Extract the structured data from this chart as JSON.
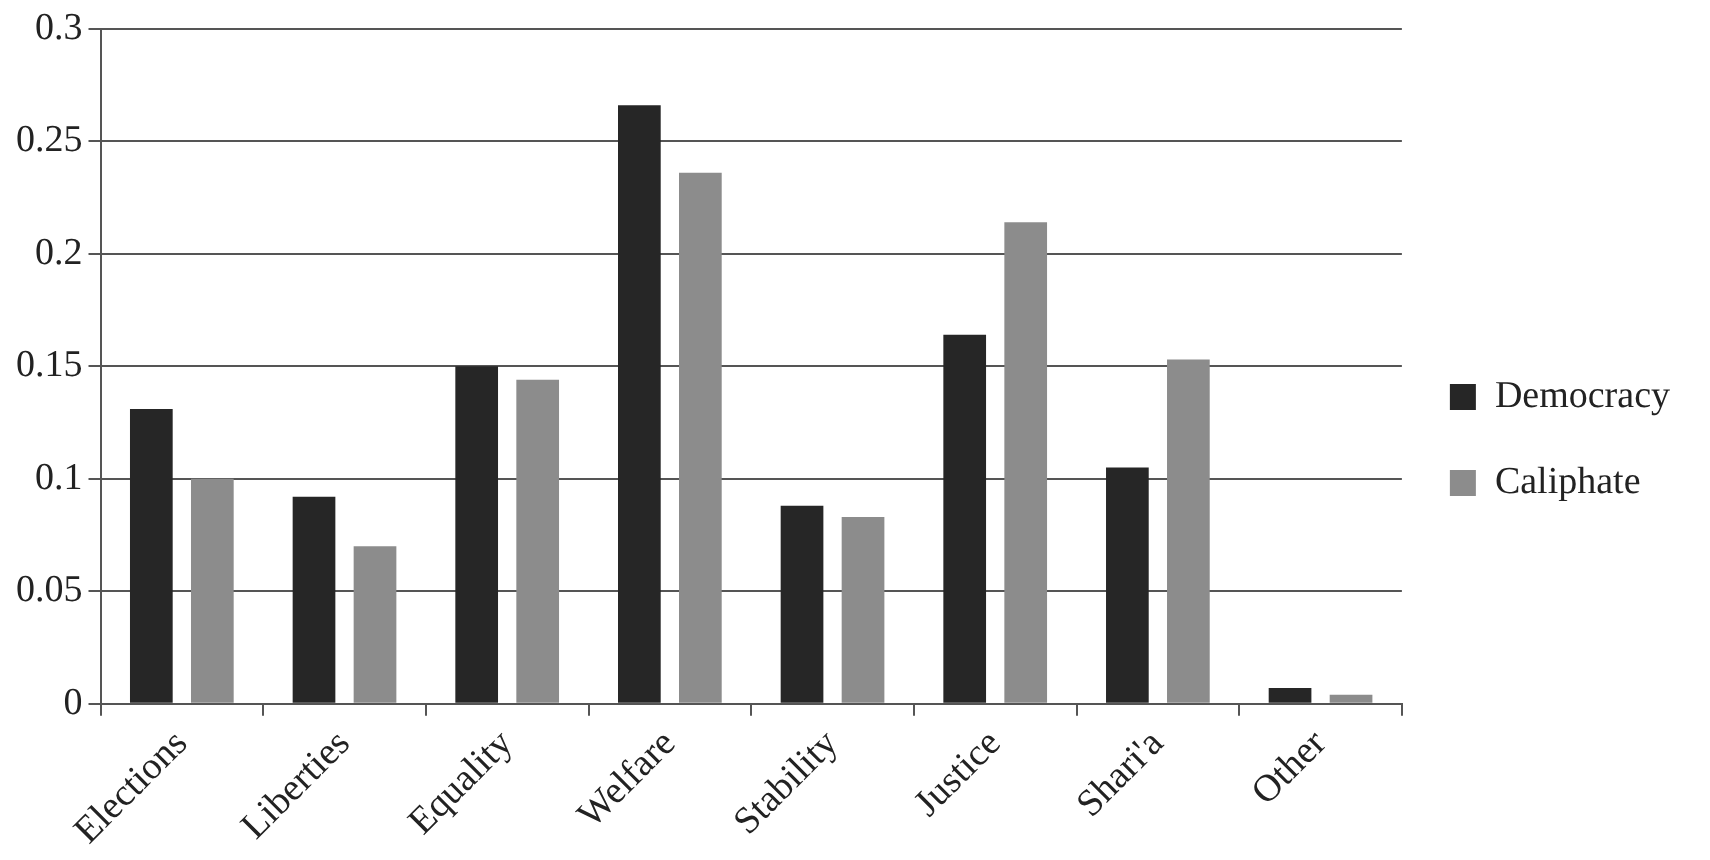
{
  "chart_data": {
    "type": "bar",
    "categories": [
      "Elections",
      "Liberties",
      "Equality",
      "Welfare",
      "Stability",
      "Justice",
      "Shari'a",
      "Other"
    ],
    "series": [
      {
        "name": "Democracy",
        "color": "#262626",
        "values": [
          0.131,
          0.092,
          0.15,
          0.266,
          0.088,
          0.164,
          0.105,
          0.007
        ]
      },
      {
        "name": "Caliphate",
        "color": "#8c8c8c",
        "values": [
          0.1,
          0.07,
          0.144,
          0.236,
          0.083,
          0.214,
          0.153,
          0.004
        ]
      }
    ],
    "ylim": [
      0,
      0.3
    ],
    "yticks": [
      0,
      0.05,
      0.1,
      0.15,
      0.2,
      0.25,
      0.3
    ],
    "grid": "y",
    "legend": "right"
  }
}
